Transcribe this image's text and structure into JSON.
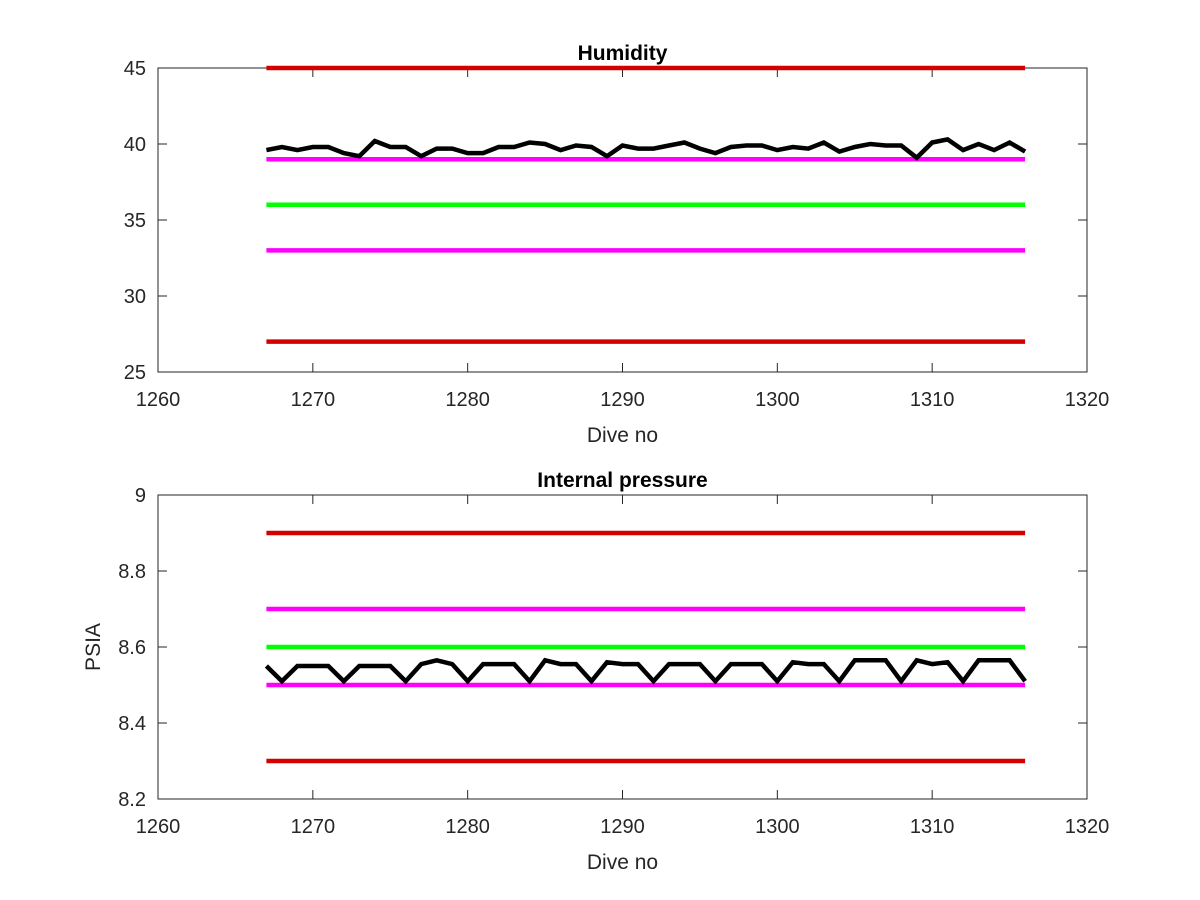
{
  "chart_data": [
    {
      "type": "line",
      "title": "Humidity",
      "xlabel": "Dive no",
      "ylabel": "",
      "xlim": [
        1260,
        1320
      ],
      "ylim": [
        25,
        45
      ],
      "xticks": [
        1260,
        1270,
        1280,
        1290,
        1300,
        1310,
        1320
      ],
      "yticks": [
        25,
        30,
        35,
        40,
        45
      ],
      "grid": false,
      "series": [
        {
          "role": "threshold",
          "color": "#d40000",
          "x": [
            1267,
            1316
          ],
          "y": [
            45,
            45
          ]
        },
        {
          "role": "threshold",
          "color": "#ff00ff",
          "x": [
            1267,
            1316
          ],
          "y": [
            39,
            39
          ]
        },
        {
          "role": "threshold",
          "color": "#00ff00",
          "x": [
            1267,
            1316
          ],
          "y": [
            36,
            36
          ]
        },
        {
          "role": "threshold",
          "color": "#ff00ff",
          "x": [
            1267,
            1316
          ],
          "y": [
            33,
            33
          ]
        },
        {
          "role": "threshold",
          "color": "#d40000",
          "x": [
            1267,
            1316
          ],
          "y": [
            27,
            27
          ]
        },
        {
          "role": "measured",
          "color": "#000000",
          "x": [
            1267,
            1268,
            1269,
            1270,
            1271,
            1272,
            1273,
            1274,
            1275,
            1276,
            1277,
            1278,
            1279,
            1280,
            1281,
            1282,
            1283,
            1284,
            1285,
            1286,
            1287,
            1288,
            1289,
            1290,
            1291,
            1292,
            1293,
            1294,
            1295,
            1296,
            1297,
            1298,
            1299,
            1300,
            1301,
            1302,
            1303,
            1304,
            1305,
            1306,
            1307,
            1308,
            1309,
            1310,
            1311,
            1312,
            1313,
            1314,
            1315,
            1316
          ],
          "y": [
            39.6,
            39.8,
            39.6,
            39.8,
            39.8,
            39.4,
            39.2,
            40.2,
            39.8,
            39.8,
            39.2,
            39.7,
            39.7,
            39.4,
            39.4,
            39.8,
            39.8,
            40.1,
            40.0,
            39.6,
            39.9,
            39.8,
            39.2,
            39.9,
            39.7,
            39.7,
            39.9,
            40.1,
            39.7,
            39.4,
            39.8,
            39.9,
            39.9,
            39.6,
            39.8,
            39.7,
            40.1,
            39.5,
            39.8,
            40.0,
            39.9,
            39.9,
            39.1,
            40.1,
            40.3,
            39.6,
            40.0,
            39.6,
            40.1,
            39.5
          ]
        }
      ]
    },
    {
      "type": "line",
      "title": "Internal pressure",
      "xlabel": "Dive no",
      "ylabel": "PSIA",
      "xlim": [
        1260,
        1320
      ],
      "ylim": [
        8.2,
        9.0
      ],
      "xticks": [
        1260,
        1270,
        1280,
        1290,
        1300,
        1310,
        1320
      ],
      "yticks": [
        8.2,
        8.4,
        8.6,
        8.8,
        9.0
      ],
      "ytick_labels": [
        "8.2",
        "8.4",
        "8.6",
        "8.8",
        "9"
      ],
      "grid": false,
      "series": [
        {
          "role": "threshold",
          "color": "#d40000",
          "x": [
            1267,
            1316
          ],
          "y": [
            8.9,
            8.9
          ]
        },
        {
          "role": "threshold",
          "color": "#ff00ff",
          "x": [
            1267,
            1316
          ],
          "y": [
            8.7,
            8.7
          ]
        },
        {
          "role": "threshold",
          "color": "#00ff00",
          "x": [
            1267,
            1316
          ],
          "y": [
            8.6,
            8.6
          ]
        },
        {
          "role": "threshold",
          "color": "#ff00ff",
          "x": [
            1267,
            1316
          ],
          "y": [
            8.5,
            8.5
          ]
        },
        {
          "role": "threshold",
          "color": "#d40000",
          "x": [
            1267,
            1316
          ],
          "y": [
            8.3,
            8.3
          ]
        },
        {
          "role": "measured",
          "color": "#000000",
          "x": [
            1267,
            1268,
            1269,
            1270,
            1271,
            1272,
            1273,
            1274,
            1275,
            1276,
            1277,
            1278,
            1279,
            1280,
            1281,
            1282,
            1283,
            1284,
            1285,
            1286,
            1287,
            1288,
            1289,
            1290,
            1291,
            1292,
            1293,
            1294,
            1295,
            1296,
            1297,
            1298,
            1299,
            1300,
            1301,
            1302,
            1303,
            1304,
            1305,
            1306,
            1307,
            1308,
            1309,
            1310,
            1311,
            1312,
            1313,
            1314,
            1315,
            1316
          ],
          "y": [
            8.55,
            8.51,
            8.55,
            8.55,
            8.55,
            8.51,
            8.55,
            8.55,
            8.55,
            8.51,
            8.555,
            8.565,
            8.555,
            8.51,
            8.555,
            8.555,
            8.555,
            8.51,
            8.565,
            8.555,
            8.555,
            8.51,
            8.56,
            8.555,
            8.555,
            8.51,
            8.555,
            8.555,
            8.555,
            8.51,
            8.555,
            8.555,
            8.555,
            8.51,
            8.56,
            8.555,
            8.555,
            8.51,
            8.565,
            8.565,
            8.565,
            8.51,
            8.565,
            8.555,
            8.56,
            8.51,
            8.565,
            8.565,
            8.565,
            8.51
          ]
        }
      ]
    }
  ]
}
